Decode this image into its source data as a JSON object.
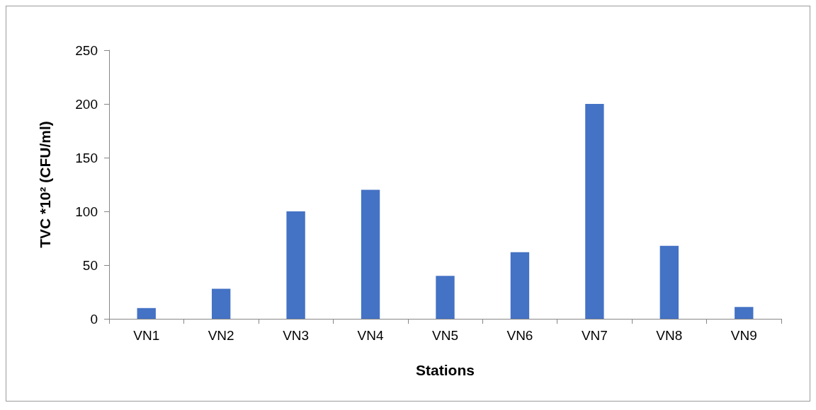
{
  "chart_data": {
    "type": "bar",
    "categories": [
      "VN1",
      "VN2",
      "VN3",
      "VN4",
      "VN5",
      "VN6",
      "VN7",
      "VN8",
      "VN9"
    ],
    "values": [
      10,
      28,
      100,
      120,
      40,
      62,
      200,
      68,
      11
    ],
    "color": "#4472c4",
    "xlabel": "Stations",
    "ylabel": "TVC *10² (CFU/ml)",
    "ylim": [
      0,
      250
    ],
    "yticks": [
      0,
      50,
      100,
      150,
      200,
      250
    ],
    "grid": false
  }
}
